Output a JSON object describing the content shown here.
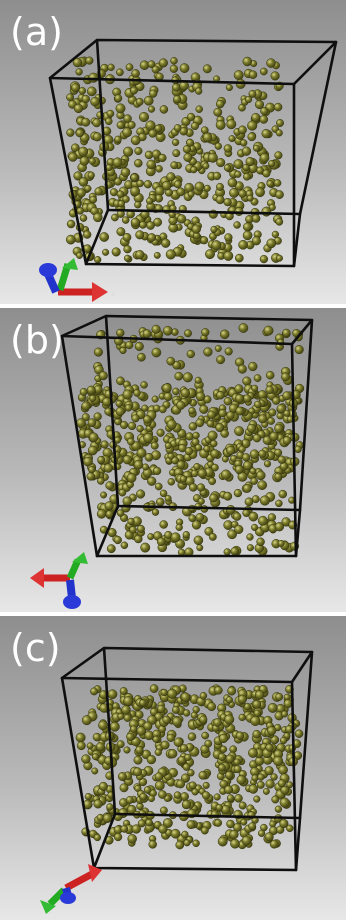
{
  "panels": [
    {
      "id": "a",
      "label": "(a)",
      "atom_color": "#7a7a2a",
      "axis_colors": {
        "x": "#cc2222",
        "y": "#22aa22",
        "z": "#2222cc"
      }
    },
    {
      "id": "b",
      "label": "(b)",
      "atom_color": "#7a7a2a",
      "axis_colors": {
        "x": "#cc2222",
        "y": "#22aa22",
        "z": "#2222cc"
      }
    },
    {
      "id": "c",
      "label": "(c)",
      "atom_color": "#7a7a2a",
      "axis_colors": {
        "x": "#cc2222",
        "y": "#22aa22",
        "z": "#2222cc"
      }
    }
  ]
}
